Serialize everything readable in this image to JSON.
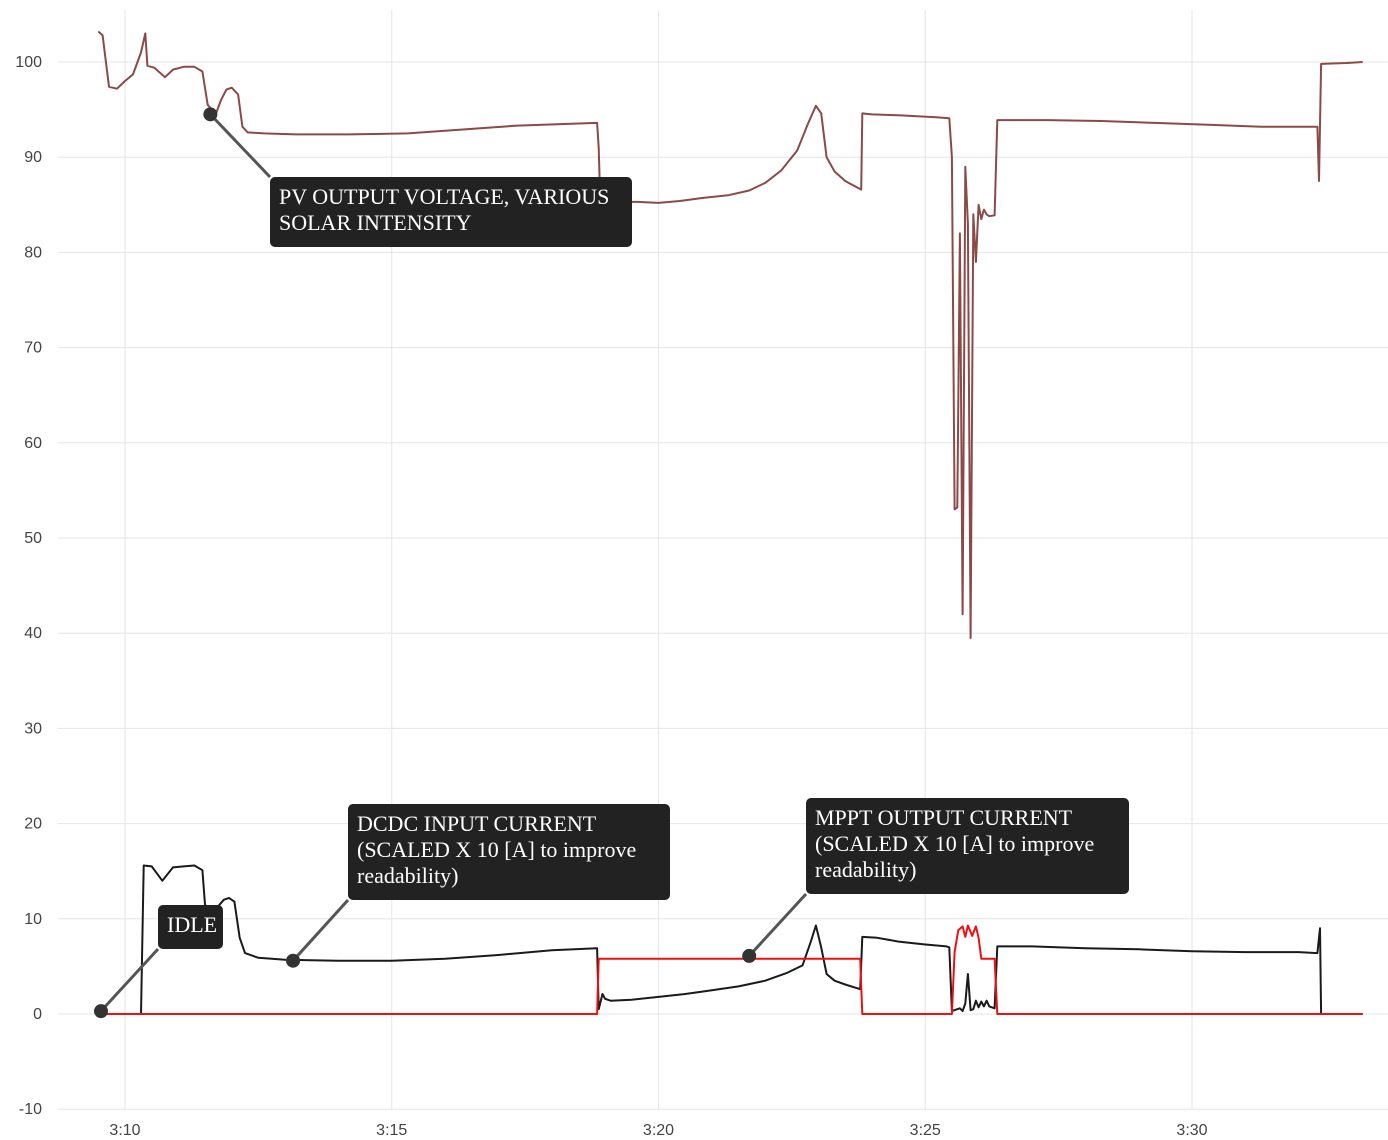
{
  "chart_data": {
    "type": "line",
    "title": "",
    "xlabel": "",
    "ylabel": "",
    "xlim": [
      9.25,
      33.6
    ],
    "ylim": [
      -10,
      105
    ],
    "grid": true,
    "x_ticks": [
      {
        "value": 10,
        "label": "3:10"
      },
      {
        "value": 15,
        "label": "3:15"
      },
      {
        "value": 20,
        "label": "3:20"
      },
      {
        "value": 25,
        "label": "3:25"
      },
      {
        "value": 30,
        "label": "3:30"
      }
    ],
    "y_ticks": [
      {
        "value": -10,
        "label": "-10"
      },
      {
        "value": 0,
        "label": "0"
      },
      {
        "value": 10,
        "label": "10"
      },
      {
        "value": 20,
        "label": "20"
      },
      {
        "value": 30,
        "label": "30"
      },
      {
        "value": 40,
        "label": "40"
      },
      {
        "value": 50,
        "label": "50"
      },
      {
        "value": 60,
        "label": "60"
      },
      {
        "value": 70,
        "label": "70"
      },
      {
        "value": 80,
        "label": "80"
      },
      {
        "value": 90,
        "label": "90"
      },
      {
        "value": 100,
        "label": "100"
      }
    ],
    "series": [
      {
        "color": "#8b4a48",
        "points": [
          [
            9.5,
            103.2
          ],
          [
            9.58,
            102.8
          ],
          [
            9.7,
            97.4
          ],
          [
            9.85,
            97.2
          ],
          [
            10.0,
            98.0
          ],
          [
            10.15,
            98.7
          ],
          [
            10.3,
            101.0
          ],
          [
            10.38,
            103.0
          ],
          [
            10.42,
            99.6
          ],
          [
            10.55,
            99.4
          ],
          [
            10.65,
            98.9
          ],
          [
            10.75,
            98.4
          ],
          [
            10.9,
            99.2
          ],
          [
            11.1,
            99.5
          ],
          [
            11.3,
            99.5
          ],
          [
            11.45,
            99.0
          ],
          [
            11.55,
            95.5
          ],
          [
            11.7,
            94.5
          ],
          [
            11.8,
            96.0
          ],
          [
            11.9,
            97.1
          ],
          [
            12.0,
            97.3
          ],
          [
            12.12,
            96.6
          ],
          [
            12.2,
            93.2
          ],
          [
            12.3,
            92.6
          ],
          [
            12.6,
            92.5
          ],
          [
            13.2,
            92.4
          ],
          [
            14.2,
            92.4
          ],
          [
            15.3,
            92.5
          ],
          [
            16.3,
            92.9
          ],
          [
            17.3,
            93.3
          ],
          [
            18.3,
            93.5
          ],
          [
            18.85,
            93.6
          ],
          [
            18.88,
            91.0
          ],
          [
            18.9,
            87.0
          ],
          [
            19.0,
            85.6
          ],
          [
            19.3,
            85.3
          ],
          [
            19.6,
            85.3
          ],
          [
            20.0,
            85.2
          ],
          [
            20.4,
            85.4
          ],
          [
            20.8,
            85.7
          ],
          [
            21.3,
            86.0
          ],
          [
            21.7,
            86.5
          ],
          [
            22.0,
            87.3
          ],
          [
            22.3,
            88.6
          ],
          [
            22.6,
            90.7
          ],
          [
            22.8,
            93.5
          ],
          [
            22.95,
            95.4
          ],
          [
            23.05,
            94.6
          ],
          [
            23.15,
            90.0
          ],
          [
            23.3,
            88.5
          ],
          [
            23.5,
            87.5
          ],
          [
            23.8,
            86.6
          ],
          [
            23.82,
            94.6
          ],
          [
            24.0,
            94.5
          ],
          [
            24.5,
            94.4
          ],
          [
            25.2,
            94.2
          ],
          [
            25.45,
            94.1
          ],
          [
            25.5,
            90.0
          ],
          [
            25.55,
            53.0
          ],
          [
            25.6,
            53.2
          ],
          [
            25.65,
            82.0
          ],
          [
            25.7,
            42.0
          ],
          [
            25.75,
            89.0
          ],
          [
            25.8,
            83.0
          ],
          [
            25.85,
            39.5
          ],
          [
            25.9,
            84.0
          ],
          [
            25.95,
            79.0
          ],
          [
            26.0,
            85.0
          ],
          [
            26.05,
            83.5
          ],
          [
            26.1,
            84.5
          ],
          [
            26.15,
            84.0
          ],
          [
            26.2,
            83.8
          ],
          [
            26.3,
            83.9
          ],
          [
            26.35,
            93.9
          ],
          [
            26.6,
            93.9
          ],
          [
            27.3,
            93.9
          ],
          [
            28.3,
            93.8
          ],
          [
            29.3,
            93.6
          ],
          [
            30.3,
            93.4
          ],
          [
            31.3,
            93.2
          ],
          [
            32.2,
            93.2
          ],
          [
            32.35,
            93.2
          ],
          [
            32.38,
            87.5
          ],
          [
            32.42,
            99.8
          ],
          [
            32.9,
            99.9
          ],
          [
            33.2,
            100.0
          ]
        ]
      },
      {
        "color": "#1a1a1a",
        "points": [
          [
            9.45,
            0.0
          ],
          [
            10.3,
            0.0
          ],
          [
            10.35,
            15.6
          ],
          [
            10.5,
            15.5
          ],
          [
            10.7,
            14.0
          ],
          [
            10.9,
            15.4
          ],
          [
            11.1,
            15.5
          ],
          [
            11.3,
            15.6
          ],
          [
            11.45,
            15.1
          ],
          [
            11.5,
            11.5
          ],
          [
            11.6,
            10.5
          ],
          [
            11.7,
            11.0
          ],
          [
            11.85,
            12.0
          ],
          [
            11.95,
            12.2
          ],
          [
            12.05,
            11.8
          ],
          [
            12.15,
            8.0
          ],
          [
            12.25,
            6.4
          ],
          [
            12.5,
            5.9
          ],
          [
            13.0,
            5.7
          ],
          [
            14.0,
            5.6
          ],
          [
            15.0,
            5.6
          ],
          [
            16.0,
            5.8
          ],
          [
            17.0,
            6.2
          ],
          [
            18.0,
            6.7
          ],
          [
            18.85,
            6.9
          ],
          [
            18.88,
            0.5
          ],
          [
            18.95,
            2.1
          ],
          [
            19.0,
            1.6
          ],
          [
            19.1,
            1.4
          ],
          [
            19.5,
            1.5
          ],
          [
            20.0,
            1.8
          ],
          [
            20.5,
            2.1
          ],
          [
            21.0,
            2.5
          ],
          [
            21.5,
            2.9
          ],
          [
            22.0,
            3.5
          ],
          [
            22.4,
            4.3
          ],
          [
            22.7,
            5.1
          ],
          [
            22.85,
            7.5
          ],
          [
            22.95,
            9.3
          ],
          [
            23.05,
            7.0
          ],
          [
            23.15,
            4.2
          ],
          [
            23.3,
            3.5
          ],
          [
            23.5,
            3.1
          ],
          [
            23.78,
            2.6
          ],
          [
            23.82,
            8.1
          ],
          [
            24.1,
            8.0
          ],
          [
            24.5,
            7.6
          ],
          [
            25.0,
            7.3
          ],
          [
            25.4,
            7.1
          ],
          [
            25.45,
            7.0
          ],
          [
            25.5,
            0.3
          ],
          [
            25.65,
            0.6
          ],
          [
            25.7,
            0.3
          ],
          [
            25.75,
            1.1
          ],
          [
            25.8,
            4.2
          ],
          [
            25.85,
            0.4
          ],
          [
            25.9,
            0.5
          ],
          [
            25.95,
            1.4
          ],
          [
            26.0,
            0.7
          ],
          [
            26.05,
            1.3
          ],
          [
            26.1,
            0.8
          ],
          [
            26.15,
            1.4
          ],
          [
            26.2,
            0.8
          ],
          [
            26.3,
            0.6
          ],
          [
            26.35,
            7.1
          ],
          [
            27.0,
            7.1
          ],
          [
            28.0,
            6.9
          ],
          [
            29.0,
            6.8
          ],
          [
            30.0,
            6.6
          ],
          [
            31.0,
            6.5
          ],
          [
            32.0,
            6.5
          ],
          [
            32.35,
            6.4
          ],
          [
            32.4,
            9.0
          ],
          [
            32.42,
            0.0
          ],
          [
            33.2,
            0.0
          ]
        ]
      },
      {
        "color": "#ee1111",
        "points": [
          [
            9.45,
            0.0
          ],
          [
            18.85,
            0.0
          ],
          [
            18.88,
            5.8
          ],
          [
            23.78,
            5.8
          ],
          [
            23.82,
            0.0
          ],
          [
            25.5,
            0.0
          ],
          [
            25.55,
            6.5
          ],
          [
            25.62,
            8.8
          ],
          [
            25.7,
            9.2
          ],
          [
            25.75,
            8.1
          ],
          [
            25.8,
            9.3
          ],
          [
            25.88,
            8.2
          ],
          [
            25.95,
            9.2
          ],
          [
            26.0,
            8.0
          ],
          [
            26.05,
            5.8
          ],
          [
            26.3,
            5.8
          ],
          [
            26.35,
            0.0
          ],
          [
            33.2,
            0.0
          ]
        ]
      }
    ],
    "annotations": [
      {
        "lines": [
          "PV OUTPUT VOLTAGE, VARIOUS",
          "SOLAR INTENSITY"
        ],
        "point": [
          11.6,
          94.5
        ],
        "anchor": "upper-left",
        "box_color": "#222222"
      },
      {
        "lines": [
          "IDLE"
        ],
        "point": [
          9.55,
          0.3
        ],
        "anchor": "upper-left",
        "box_color": "#222222"
      },
      {
        "lines": [
          "DCDC INPUT CURRENT",
          "(SCALED X 10 [A] to improve",
          "readability)"
        ],
        "point": [
          13.15,
          5.6
        ],
        "anchor": "upper-left",
        "box_color": "#222222"
      },
      {
        "lines": [
          "MPPT OUTPUT CURRENT",
          "(SCALED X 10 [A] to improve",
          "readability)"
        ],
        "point": [
          21.7,
          6.1
        ],
        "anchor": "upper-left",
        "box_color": "#222222"
      }
    ]
  }
}
